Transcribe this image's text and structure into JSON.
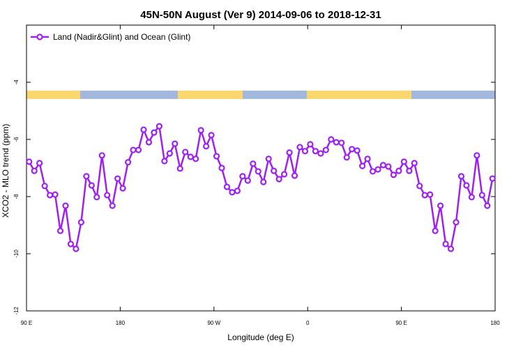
{
  "chart_data": {
    "type": "line",
    "title": "45N-50N August (Ver 9)   2014-09-06 to 2018-12-31",
    "xlabel": "Longitude (deg E)",
    "ylabel": "XCO2 - MLO trend (ppm)",
    "legend": "upper left",
    "xlim": [
      90,
      540
    ],
    "ylim": [
      -12,
      -2
    ],
    "xticks": [
      {
        "value": 90,
        "label": "90 E"
      },
      180,
      {
        "value": 270,
        "label": "90 W"
      },
      {
        "value": 360,
        "label": "0"
      },
      {
        "value": 450,
        "label": "90 E"
      },
      {
        "value": 540,
        "label": "180"
      }
    ],
    "yticks": [
      -12,
      -10,
      -8,
      -6,
      -4
    ],
    "x": [
      92.5,
      97.5,
      102.5,
      107.5,
      112.5,
      117.5,
      122.5,
      127.5,
      132.5,
      137.5,
      142.5,
      147.5,
      152.5,
      157.5,
      162.5,
      167.5,
      172.5,
      177.5,
      182.5,
      187.5,
      192.5,
      197.5,
      202.5,
      207.5,
      212.5,
      217.5,
      222.5,
      227.5,
      232.5,
      237.5,
      242.5,
      247.5,
      252.5,
      257.5,
      262.5,
      267.5,
      272.5,
      277.5,
      282.5,
      287.5,
      292.5,
      297.5,
      302.5,
      307.5,
      312.5,
      317.5,
      322.5,
      327.5,
      332.5,
      337.5,
      342.5,
      347.5,
      352.5,
      357.5,
      362.5,
      367.5,
      372.5,
      377.5,
      382.5,
      387.5,
      392.5,
      397.5,
      402.5,
      407.5,
      412.5,
      417.5,
      422.5,
      427.5,
      432.5,
      437.5,
      442.5,
      447.5,
      452.5,
      457.5,
      462.5,
      467.5,
      472.5,
      477.5,
      482.5,
      487.5,
      492.5,
      497.5,
      502.5,
      507.5,
      512.5,
      517.5,
      522.5,
      527.5,
      532.5,
      537.5
    ],
    "series": [
      {
        "name": "Land (Nadir&Glint) and Ocean (Glint)",
        "color": "#a020f0",
        "values": [
          -6.78,
          -7.1,
          -6.83,
          -7.63,
          -7.95,
          -7.93,
          -9.2,
          -8.32,
          -9.66,
          -9.83,
          -8.9,
          -7.29,
          -7.61,
          -8.02,
          -6.56,
          -7.95,
          -8.32,
          -7.37,
          -7.71,
          -6.8,
          -6.37,
          -6.37,
          -5.66,
          -6.1,
          -5.76,
          -5.54,
          -6.76,
          -6.49,
          -6.15,
          -7.02,
          -6.44,
          -6.61,
          -6.68,
          -5.68,
          -6.24,
          -5.85,
          -6.59,
          -7.0,
          -7.66,
          -7.85,
          -7.8,
          -7.29,
          -7.44,
          -6.85,
          -7.12,
          -7.49,
          -6.68,
          -7.1,
          -7.39,
          -7.22,
          -6.46,
          -7.27,
          -6.27,
          -6.41,
          -6.17,
          -6.41,
          -6.49,
          -6.37,
          -6.0,
          -6.1,
          -6.12,
          -6.63,
          -6.34,
          -6.39,
          -6.93,
          -6.68,
          -7.12,
          -7.05,
          -6.9,
          -6.95,
          -7.24,
          -7.1,
          -6.78,
          -7.1,
          -6.83,
          -7.63,
          -7.95,
          -7.93,
          -9.2,
          -8.32,
          -9.66,
          -9.83,
          -8.9,
          -7.29,
          -7.61,
          -8.02,
          -6.56,
          -7.95,
          -8.32,
          -7.37
        ]
      }
    ]
  }
}
